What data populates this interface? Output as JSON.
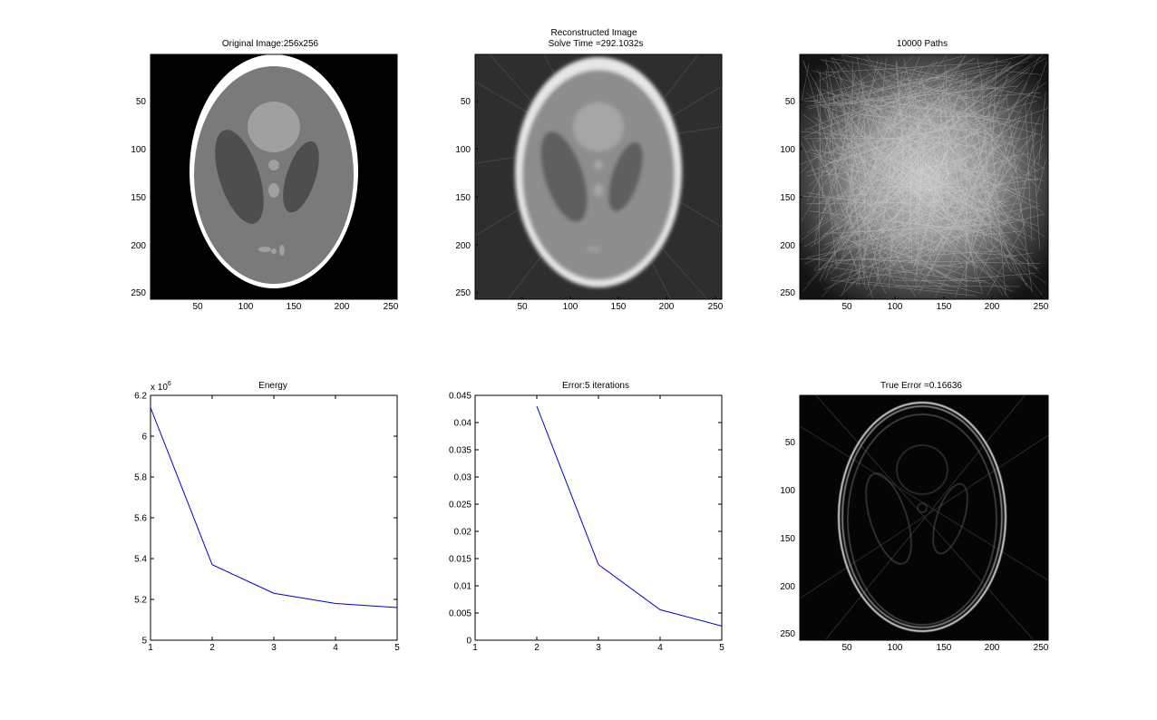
{
  "figure": {
    "panels": [
      {
        "id": "original",
        "title": [
          "Original Image:256x256"
        ]
      },
      {
        "id": "reconstructed",
        "title": [
          "Reconstructed Image",
          "Solve Time =292.1032s"
        ]
      },
      {
        "id": "paths",
        "title": [
          "10000 Paths"
        ]
      },
      {
        "id": "energy",
        "title": [
          "Energy"
        ],
        "exponent": "6"
      },
      {
        "id": "error",
        "title": [
          "Error:5 iterations"
        ]
      },
      {
        "id": "true_error",
        "title": [
          "True Error =0.16636"
        ]
      }
    ]
  },
  "chart_data": [
    {
      "type": "heatmap",
      "title": "Original Image:256x256",
      "description": "Shepp-Logan phantom",
      "xlim": [
        0.5,
        256.5
      ],
      "ylim": [
        0.5,
        256.5
      ],
      "xticks": [
        50,
        100,
        150,
        200,
        250
      ],
      "yticks": [
        50,
        100,
        150,
        200,
        250
      ],
      "colormap": "gray"
    },
    {
      "type": "heatmap",
      "title": "Reconstructed Image",
      "subtitle": "Solve Time =292.1032s",
      "xlim": [
        0.5,
        256.5
      ],
      "ylim": [
        0.5,
        256.5
      ],
      "xticks": [
        50,
        100,
        150,
        200,
        250
      ],
      "yticks": [
        50,
        100,
        150,
        200,
        250
      ],
      "colormap": "gray"
    },
    {
      "type": "heatmap",
      "title": "10000 Paths",
      "xlim": [
        0.5,
        256.5
      ],
      "ylim": [
        0.5,
        256.5
      ],
      "xticks": [
        50,
        100,
        150,
        200,
        250
      ],
      "yticks": [
        50,
        100,
        150,
        200,
        250
      ],
      "colormap": "gray"
    },
    {
      "type": "line",
      "title": "Energy",
      "x": [
        1,
        2,
        3,
        4,
        5
      ],
      "series": [
        {
          "values": [
            6.14,
            5.37,
            5.23,
            5.18,
            5.16
          ],
          "color": "#0000cc"
        }
      ],
      "xlim": [
        1,
        5
      ],
      "ylim": [
        5,
        6.2
      ],
      "xticks": [
        1,
        2,
        3,
        4,
        5
      ],
      "yticks": [
        5,
        5.2,
        5.4,
        5.6,
        5.8,
        6,
        6.2
      ],
      "ytick_labels": [
        "5",
        "5.2",
        "5.4",
        "5.6",
        "5.8",
        "6",
        "6.2"
      ],
      "y_multiplier": "x 10^6",
      "grid": false
    },
    {
      "type": "line",
      "title": "Error:5 iterations",
      "x": [
        2,
        3,
        4,
        5
      ],
      "series": [
        {
          "values": [
            0.043,
            0.0139,
            0.0056,
            0.0026
          ],
          "color": "#0000cc"
        }
      ],
      "xlim": [
        1,
        5
      ],
      "ylim": [
        0,
        0.045
      ],
      "xticks": [
        1,
        2,
        3,
        4,
        5
      ],
      "yticks": [
        0,
        0.005,
        0.01,
        0.015,
        0.02,
        0.025,
        0.03,
        0.035,
        0.04,
        0.045
      ],
      "ytick_labels": [
        "0",
        "0.005",
        "0.01",
        "0.015",
        "0.02",
        "0.025",
        "0.03",
        "0.035",
        "0.04",
        "0.045"
      ],
      "grid": false
    },
    {
      "type": "heatmap",
      "title": "True Error =0.16636",
      "xlim": [
        0.5,
        256.5
      ],
      "ylim": [
        0.5,
        256.5
      ],
      "xticks": [
        50,
        100,
        150,
        200,
        250
      ],
      "yticks": [
        50,
        100,
        150,
        200,
        250
      ],
      "colormap": "gray"
    }
  ]
}
